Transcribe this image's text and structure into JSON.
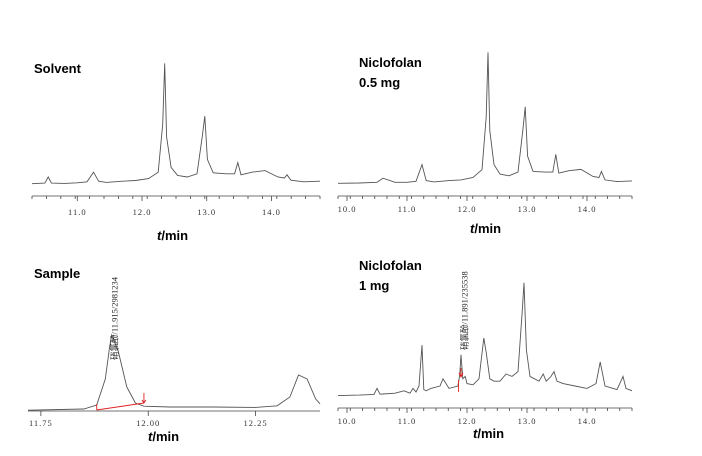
{
  "chart_data": [
    {
      "type": "line",
      "label": [
        "Solvent"
      ],
      "xlabel": "t/min",
      "xlim": [
        10.3,
        14.75
      ],
      "xticks": [
        "11.0",
        "12.0",
        "13.0",
        "14.0"
      ],
      "series": [
        {
          "x": [
            10.3,
            10.5,
            10.55,
            10.6,
            10.8,
            11.0,
            11.15,
            11.25,
            11.33,
            11.45,
            11.7,
            11.9,
            12.1,
            12.25,
            12.32,
            12.35,
            12.38,
            12.45,
            12.55,
            12.7,
            12.85,
            12.93,
            12.97,
            13.01,
            13.1,
            13.3,
            13.43,
            13.48,
            13.53,
            13.7,
            13.9,
            14.1,
            14.2,
            14.24,
            14.3,
            14.5,
            14.75
          ],
          "y": [
            0.4,
            0.6,
            2.5,
            0.6,
            0.5,
            0.7,
            1.0,
            4.0,
            1.2,
            0.8,
            1.2,
            1.4,
            2.0,
            4.0,
            19.0,
            38.0,
            15.0,
            5.5,
            3.0,
            2.5,
            3.5,
            15.0,
            21.5,
            8.0,
            3.8,
            3.5,
            3.5,
            7.0,
            3.2,
            4.0,
            4.5,
            2.5,
            2.2,
            3.2,
            1.5,
            1.0,
            1.2
          ]
        }
      ]
    },
    {
      "type": "line",
      "label": [
        "Niclofolan",
        "0.5 mg"
      ],
      "xlabel": "t/min",
      "xlim": [
        9.85,
        14.75
      ],
      "xticks": [
        "10.0",
        "11.0",
        "12.0",
        "13.0",
        "14.0"
      ],
      "series": [
        {
          "x": [
            9.85,
            10.2,
            10.5,
            10.6,
            10.8,
            11.0,
            11.15,
            11.25,
            11.32,
            11.45,
            11.7,
            11.9,
            12.1,
            12.25,
            12.32,
            12.35,
            12.38,
            12.45,
            12.55,
            12.7,
            12.85,
            12.93,
            12.97,
            13.01,
            13.1,
            13.3,
            13.43,
            13.48,
            13.53,
            13.7,
            13.9,
            14.1,
            14.2,
            14.24,
            14.3,
            14.5,
            14.75
          ],
          "y": [
            0.5,
            0.6,
            0.8,
            2.0,
            0.8,
            0.8,
            1.1,
            6.0,
            1.3,
            0.9,
            1.3,
            1.5,
            2.2,
            4.5,
            20.0,
            39.0,
            16.0,
            6.0,
            3.2,
            2.7,
            3.8,
            16.0,
            23.0,
            8.5,
            4.0,
            3.8,
            3.8,
            9.0,
            3.5,
            4.2,
            4.6,
            2.5,
            2.2,
            4.0,
            1.5,
            1.0,
            1.2
          ]
        }
      ]
    },
    {
      "type": "line",
      "label": [
        "Sample"
      ],
      "xlabel": "t/min",
      "xlim": [
        11.72,
        12.4
      ],
      "xticks": [
        "11.75",
        "12.00",
        "12.25"
      ],
      "annotation": "硝氯酚/11.915/2981234",
      "series": [
        {
          "x": [
            11.72,
            11.85,
            11.88,
            11.9,
            11.91,
            11.915,
            11.93,
            11.95,
            11.97,
            11.99,
            12.05,
            12.15,
            12.25,
            12.3,
            12.33,
            12.35,
            12.37,
            12.39,
            12.4
          ],
          "y": [
            0.2,
            0.5,
            1.5,
            8.0,
            16.0,
            19.0,
            15.0,
            6.0,
            2.0,
            1.2,
            1.0,
            1.0,
            0.9,
            1.3,
            3.5,
            9.0,
            8.0,
            3.0,
            1.8
          ]
        }
      ]
    },
    {
      "type": "line",
      "label": [
        "Niclofolan",
        "1 mg"
      ],
      "xlabel": "t/min",
      "xlim": [
        9.85,
        14.75
      ],
      "xticks": [
        "10.0",
        "11.0",
        "12.0",
        "13.0",
        "14.0"
      ],
      "annotation": "硝氯酚/11.891/235538",
      "series": [
        {
          "x": [
            9.85,
            10.2,
            10.45,
            10.5,
            10.55,
            10.8,
            10.95,
            11.05,
            11.1,
            11.15,
            11.2,
            11.25,
            11.28,
            11.32,
            11.4,
            11.55,
            11.6,
            11.7,
            11.85,
            11.88,
            11.9,
            11.93,
            11.97,
            12.0,
            12.1,
            12.2,
            12.28,
            12.32,
            12.38,
            12.45,
            12.55,
            12.65,
            12.75,
            12.85,
            12.92,
            12.95,
            12.99,
            13.05,
            13.2,
            13.27,
            13.32,
            13.4,
            13.45,
            13.5,
            13.6,
            13.8,
            14.0,
            14.15,
            14.22,
            14.3,
            14.5,
            14.6,
            14.65,
            14.75
          ],
          "y": [
            1.0,
            1.2,
            1.5,
            4.0,
            1.6,
            2.0,
            3.0,
            2.0,
            4.0,
            2.5,
            5.0,
            22.0,
            3.5,
            3.0,
            4.0,
            5.0,
            8.0,
            4.0,
            5.0,
            10.0,
            18.0,
            8.0,
            9.0,
            6.0,
            5.5,
            8.0,
            25.0,
            19.0,
            8.0,
            7.0,
            7.0,
            10.0,
            9.0,
            11.0,
            36.0,
            48.0,
            20.0,
            9.0,
            7.0,
            10.0,
            7.0,
            9.0,
            11.0,
            7.0,
            6.0,
            5.0,
            4.0,
            6.0,
            15.0,
            5.0,
            3.5,
            9.0,
            4.0,
            3.0
          ]
        }
      ]
    }
  ]
}
